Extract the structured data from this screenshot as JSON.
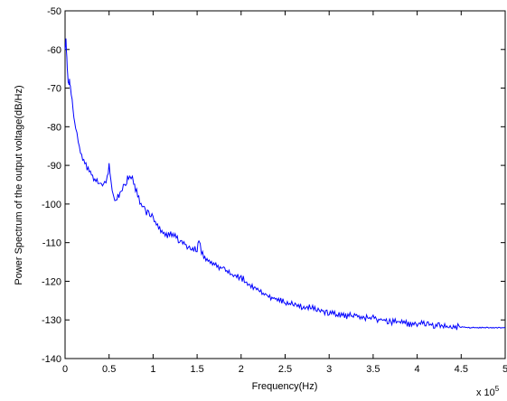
{
  "chart_data": {
    "type": "line",
    "title": "",
    "xlabel": "Frequency(Hz)",
    "ylabel": "Power Spectrum of the output voltage(dB/Hz)",
    "x_multiplier_label": {
      "base": "x 10",
      "exponent": "5"
    },
    "xlim": [
      0,
      500000
    ],
    "ylim": [
      -140,
      -50
    ],
    "xticks": [
      {
        "value": 0,
        "label": "0"
      },
      {
        "value": 50000,
        "label": "0.5"
      },
      {
        "value": 100000,
        "label": "1"
      },
      {
        "value": 150000,
        "label": "1.5"
      },
      {
        "value": 200000,
        "label": "2"
      },
      {
        "value": 250000,
        "label": "2.5"
      },
      {
        "value": 300000,
        "label": "3"
      },
      {
        "value": 350000,
        "label": "3.5"
      },
      {
        "value": 400000,
        "label": "4"
      },
      {
        "value": 450000,
        "label": "4.5"
      },
      {
        "value": 500000,
        "label": "5"
      }
    ],
    "yticks": [
      {
        "value": -50,
        "label": "-50"
      },
      {
        "value": -60,
        "label": "-60"
      },
      {
        "value": -70,
        "label": "-70"
      },
      {
        "value": -80,
        "label": "-80"
      },
      {
        "value": -90,
        "label": "-90"
      },
      {
        "value": -100,
        "label": "-100"
      },
      {
        "value": -110,
        "label": "-110"
      },
      {
        "value": -120,
        "label": "-120"
      },
      {
        "value": -130,
        "label": "-130"
      },
      {
        "value": -140,
        "label": "-140"
      }
    ],
    "grid": false,
    "legend": "none",
    "series": [
      {
        "color": "#0000ff",
        "x": [
          0,
          1000,
          2000,
          3000,
          4000,
          5000,
          6000,
          8000,
          10000,
          12000,
          15000,
          20000,
          25000,
          30000,
          35000,
          40000,
          45000,
          48000,
          50000,
          52000,
          55000,
          58000,
          60000,
          65000,
          70000,
          72000,
          75000,
          78000,
          80000,
          85000,
          90000,
          95000,
          100000,
          105000,
          110000,
          115000,
          120000,
          125000,
          130000,
          140000,
          150000,
          152000,
          155000,
          160000,
          170000,
          180000,
          190000,
          200000,
          210000,
          220000,
          230000,
          240000,
          250000,
          260000,
          270000,
          280000,
          290000,
          300000,
          310000,
          320000,
          330000,
          340000,
          350000,
          360000,
          370000,
          380000,
          390000,
          400000,
          410000,
          420000,
          430000,
          440000,
          450000,
          460000,
          470000,
          480000,
          490000,
          500000
        ],
        "y": [
          -60,
          -58,
          -62,
          -67,
          -69,
          -68,
          -70,
          -73,
          -77,
          -80,
          -84,
          -88.5,
          -90.5,
          -92.5,
          -94,
          -95,
          -95,
          -93,
          -90,
          -94,
          -98.5,
          -99.5,
          -98,
          -96,
          -94,
          -93,
          -93,
          -94,
          -96,
          -99.5,
          -101.5,
          -102.5,
          -103.5,
          -105.5,
          -107,
          -108,
          -108,
          -108.5,
          -109.5,
          -111,
          -112,
          -109.5,
          -112.5,
          -114,
          -115.5,
          -117,
          -118.5,
          -119,
          -121,
          -122.5,
          -124,
          -124.5,
          -125.5,
          -126,
          -126.5,
          -127,
          -127.5,
          -128,
          -128.5,
          -129,
          -129,
          -129.5,
          -129.5,
          -130,
          -130.5,
          -130.5,
          -131,
          -131,
          -131,
          -131.5,
          -131.5,
          -131.8,
          -131.8,
          -132,
          -132,
          -132,
          -132,
          -132
        ]
      }
    ]
  }
}
